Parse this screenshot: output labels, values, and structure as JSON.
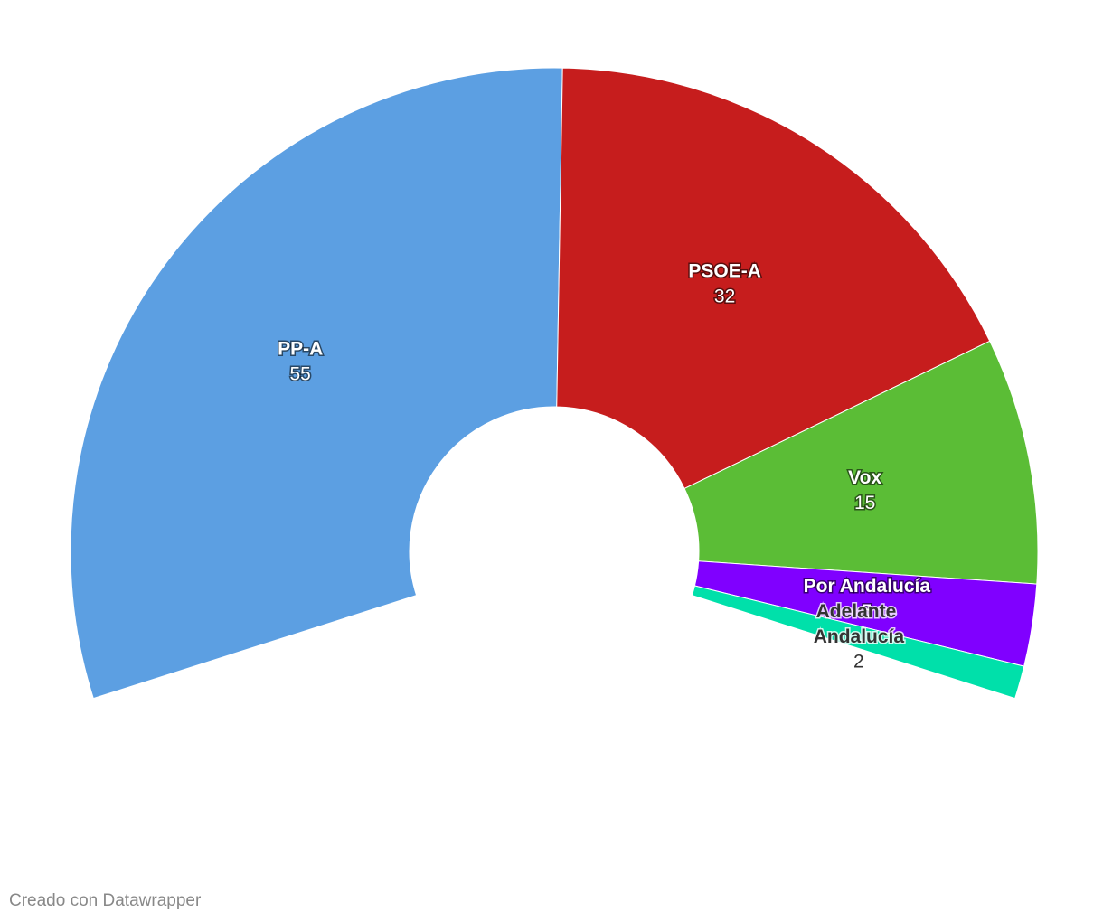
{
  "chart_data": {
    "type": "donut",
    "categories": [
      "PP-A",
      "PSOE-A",
      "Vox",
      "Por Andalucía",
      "Adelante Andalucía"
    ],
    "values": [
      55,
      32,
      15,
      5,
      2
    ],
    "colors": [
      "#5c9fe2",
      "#c61d1d",
      "#5bbd36",
      "#8000ff",
      "#00e0aa"
    ],
    "credit": "Creado con Datawrapper"
  }
}
